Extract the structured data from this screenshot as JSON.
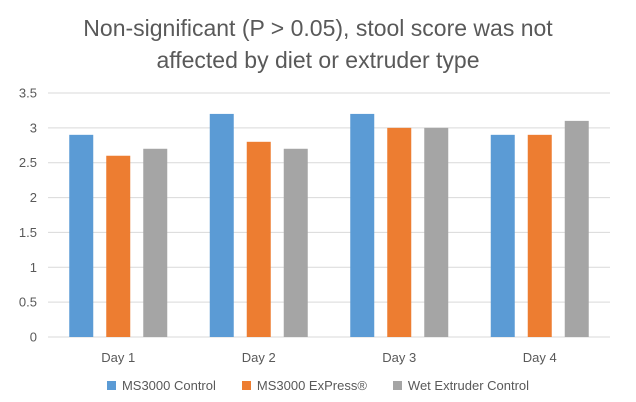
{
  "chart_data": {
    "type": "bar",
    "title_lines": [
      "Non-significant (P > 0.05), stool score was not",
      "affected by diet or extruder type"
    ],
    "categories": [
      "Day 1",
      "Day 2",
      "Day 3",
      "Day 4"
    ],
    "series": [
      {
        "name": "MS3000 Control",
        "color": "#5b9bd5",
        "values": [
          2.9,
          3.2,
          3.2,
          2.9
        ]
      },
      {
        "name": "MS3000 ExPress®",
        "color": "#ed7d31",
        "values": [
          2.6,
          2.8,
          3.0,
          2.9
        ]
      },
      {
        "name": "Wet Extruder Control",
        "color": "#a5a5a5",
        "values": [
          2.7,
          2.7,
          3.0,
          3.1
        ]
      }
    ],
    "ylim": [
      0,
      3.5
    ],
    "yticks": [
      "0",
      "0.5",
      "1",
      "1.5",
      "2",
      "2.5",
      "3",
      "3.5"
    ],
    "grid": true,
    "legend_position": "bottom"
  }
}
